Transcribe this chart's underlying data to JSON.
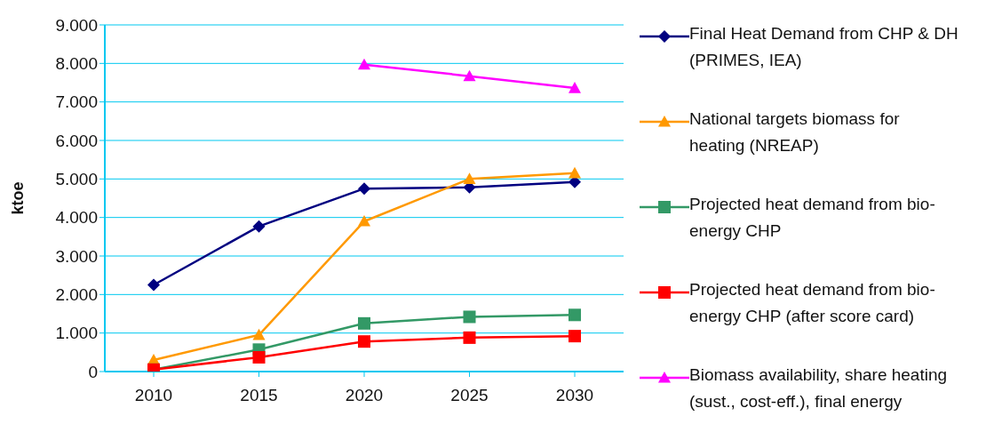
{
  "chart_data": {
    "type": "line",
    "ylabel": "ktoe",
    "categories": [
      "2010",
      "2015",
      "2020",
      "2025",
      "2030"
    ],
    "ylim": [
      0,
      9000
    ],
    "yticks": [
      {
        "value": 0,
        "label": "0"
      },
      {
        "value": 1000,
        "label": "1.000"
      },
      {
        "value": 2000,
        "label": "2.000"
      },
      {
        "value": 3000,
        "label": "3.000"
      },
      {
        "value": 4000,
        "label": "4.000"
      },
      {
        "value": 5000,
        "label": "5.000"
      },
      {
        "value": 6000,
        "label": "6.000"
      },
      {
        "value": 7000,
        "label": "7.000"
      },
      {
        "value": 8000,
        "label": "8.000"
      },
      {
        "value": 9000,
        "label": "9.000"
      }
    ],
    "grid": "y",
    "legend": "right",
    "series": [
      {
        "name": "Final Heat Demand from CHP & DH (PRIMES, IEA)",
        "color": "#000080",
        "marker": "diamond",
        "values": [
          2250,
          3770,
          4750,
          4780,
          4920
        ]
      },
      {
        "name": "National targets biomass for heating (NREAP)",
        "color": "#ff9900",
        "marker": "triangle",
        "values": [
          300,
          950,
          3900,
          5000,
          5150
        ]
      },
      {
        "name": "Projected heat demand from bio-energy CHP",
        "color": "#339966",
        "marker": "square",
        "values": [
          50,
          570,
          1250,
          1420,
          1470
        ]
      },
      {
        "name": "Projected heat demand from bio-energy CHP (after score card)",
        "color": "#ff0000",
        "marker": "square",
        "values": [
          50,
          370,
          780,
          880,
          920
        ]
      },
      {
        "name": "Biomass availability, share heating (sust., cost-eff.), final energy",
        "color": "#ff00ff",
        "marker": "triangle",
        "values": [
          null,
          null,
          7970,
          7670,
          7360
        ]
      }
    ]
  }
}
